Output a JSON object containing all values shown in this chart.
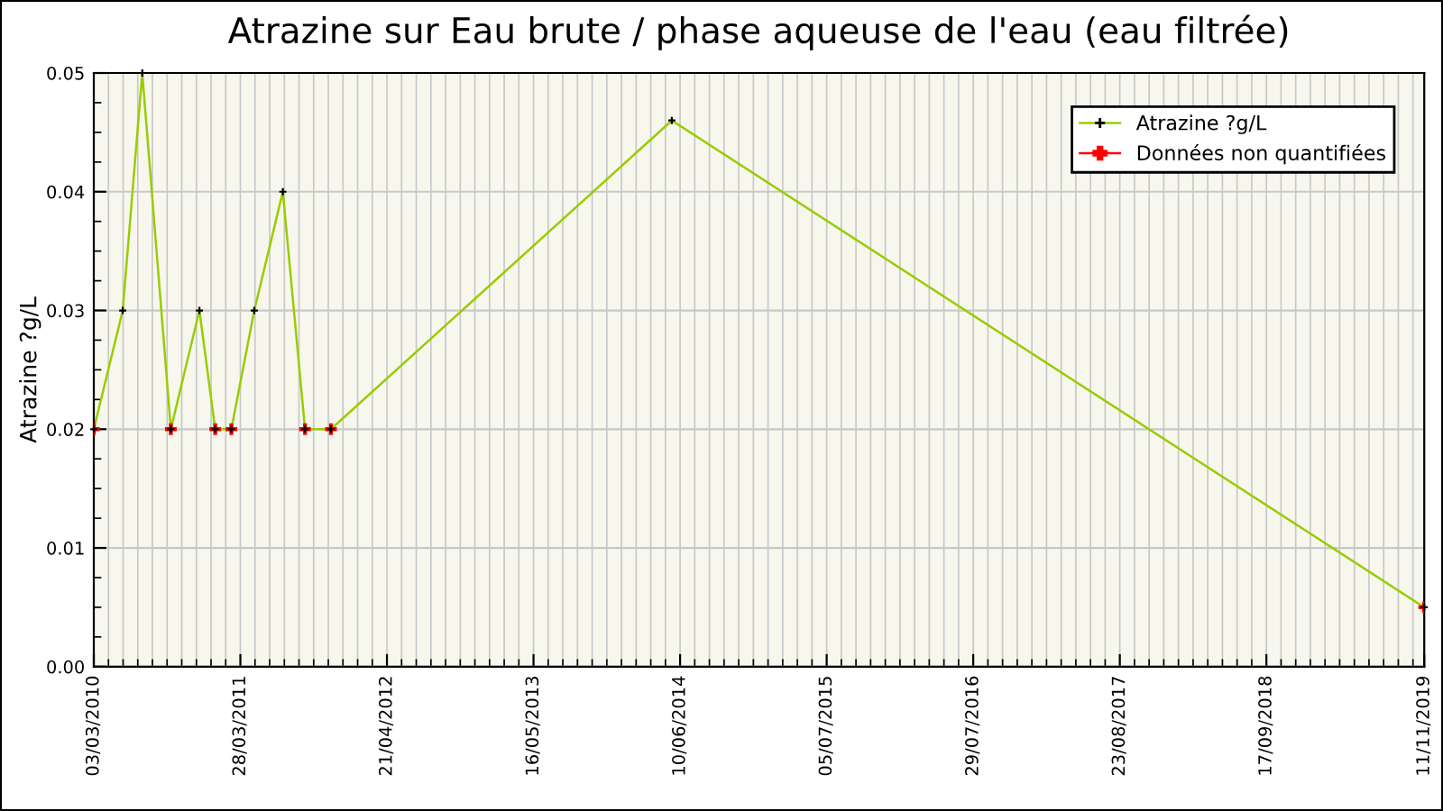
{
  "chart_data": {
    "type": "line",
    "title": "Atrazine sur Eau brute / phase aqueuse de l'eau (eau filtrée)",
    "ylabel": "Atrazine ?g/L",
    "x": [
      "2010-03-03",
      "2010-05-19",
      "2010-07-10",
      "2010-09-24",
      "2010-12-09",
      "2011-01-20",
      "2011-03-04",
      "2011-05-04",
      "2011-07-19",
      "2011-09-16",
      "2011-11-24",
      "2014-05-19",
      "2019-11-11"
    ],
    "series": [
      {
        "name": "Atrazine ?g/L",
        "color": "#99cc00",
        "colors": [
          "#000000",
          "#000000",
          "#000000",
          "#000000",
          "#000000",
          "#000000",
          "#000000",
          "#000000",
          "#000000",
          "#000000",
          "#000000",
          "#000000",
          "#000000"
        ],
        "values": [
          0.02,
          0.03,
          0.05,
          0.02,
          0.03,
          0.02,
          0.02,
          0.03,
          0.04,
          0.02,
          0.02,
          0.046,
          0.005
        ]
      },
      {
        "name": "Données non quantifiées",
        "type": "scatter",
        "color": "#ff0000",
        "values": [
          0.02,
          null,
          null,
          0.02,
          null,
          0.02,
          0.02,
          null,
          null,
          0.02,
          0.02,
          null,
          0.005
        ]
      }
    ],
    "xlim": [
      "2010-03-03",
      "2019-11-11"
    ],
    "xticks": [
      {
        "value": "2010-03-03",
        "label": "03/03/2010"
      },
      {
        "value": "2011-03-28",
        "label": "28/03/2011"
      },
      {
        "value": "2012-04-21",
        "label": "21/04/2012"
      },
      {
        "value": "2013-05-16",
        "label": "16/05/2013"
      },
      {
        "value": "2014-06-10",
        "label": "10/06/2014"
      },
      {
        "value": "2015-07-05",
        "label": "05/07/2015"
      },
      {
        "value": "2016-07-29",
        "label": "29/07/2016"
      },
      {
        "value": "2017-08-23",
        "label": "23/08/2017"
      },
      {
        "value": "2018-09-17",
        "label": "17/09/2018"
      },
      {
        "value": "2019-11-11",
        "label": "11/11/2019"
      }
    ],
    "ylim": [
      0,
      0.05
    ],
    "yticks": [
      {
        "value": 0,
        "label": "0.00"
      },
      {
        "value": 0.01,
        "label": "0.01"
      },
      {
        "value": 0.02,
        "label": "0.02"
      },
      {
        "value": 0.03,
        "label": "0.03"
      },
      {
        "value": 0.04,
        "label": "0.04"
      },
      {
        "value": 0.05,
        "label": "0.05"
      }
    ],
    "grid": true,
    "legend": "top right",
    "marker": "cross",
    "line_style": "solid"
  }
}
